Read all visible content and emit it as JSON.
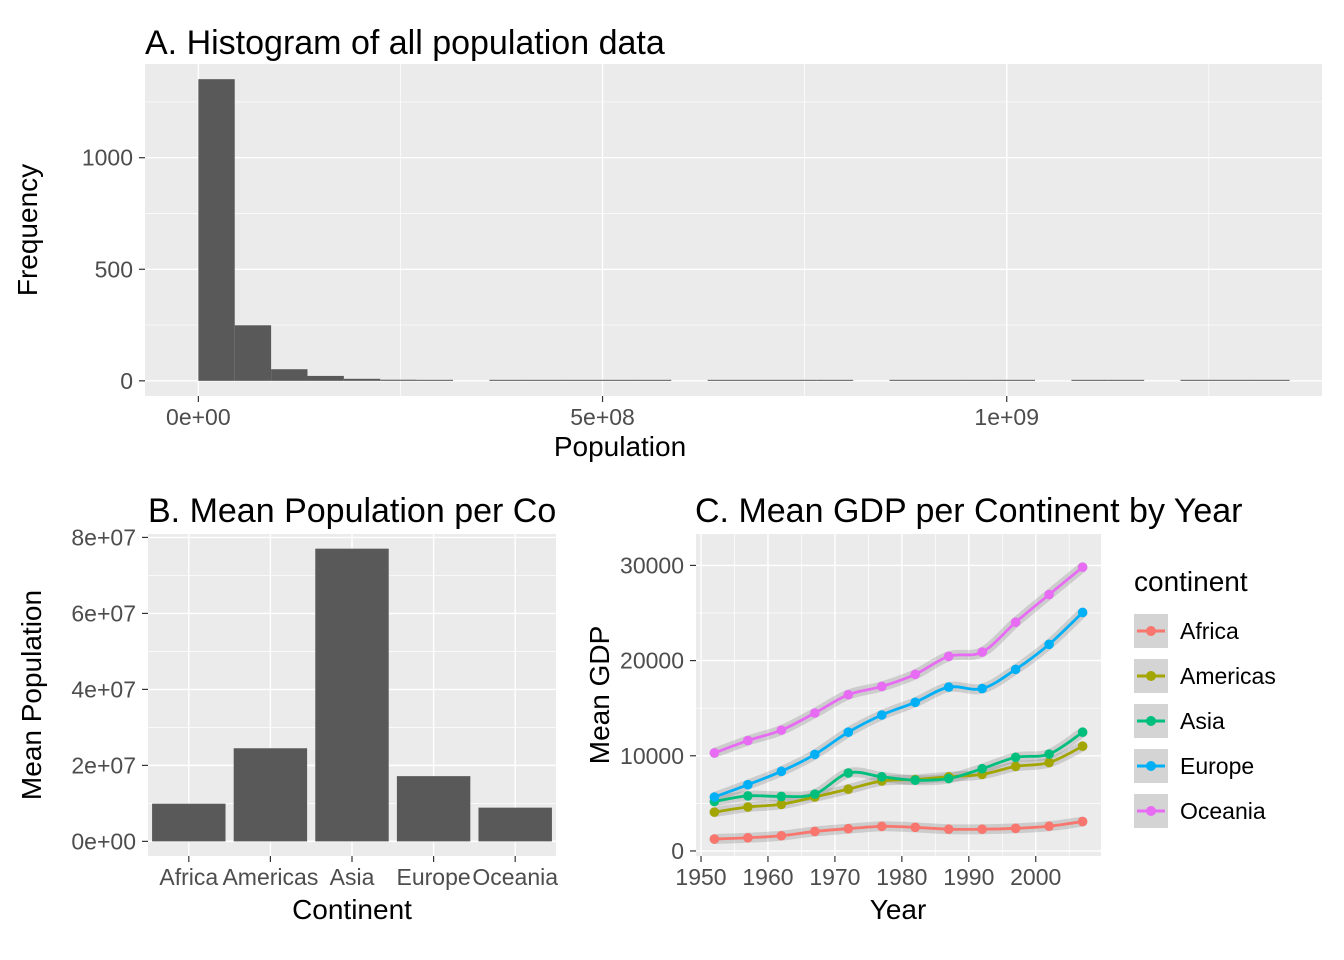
{
  "figure": {
    "background": "#ffffff",
    "panel_background": "#ebebeb",
    "grid_color": "#ffffff",
    "axis_text_color": "#4d4d4d",
    "tick_mark_color": "#333333",
    "title_color": "#000000",
    "legend_key_fill": "#d4d4d4",
    "ribbon_color": "rgba(125,125,125,0.28)"
  },
  "chart_data": [
    {
      "id": "A",
      "type": "histogram",
      "title": "A. Histogram of all population data",
      "xlabel": "Population",
      "ylabel": "Frequency",
      "bar_color": "#595959",
      "bin_start": 0,
      "bin_width": 45000000,
      "counts": [
        1352,
        249,
        52,
        22,
        9,
        5,
        3,
        0,
        1,
        1,
        1,
        1,
        2,
        0,
        3,
        1,
        1,
        1,
        0,
        2,
        1,
        1,
        2,
        0,
        2,
        1,
        0,
        1,
        1,
        1
      ],
      "xlim": [
        -66000000,
        1390000000
      ],
      "ylim": [
        -68,
        1420
      ],
      "xticks": [
        {
          "v": 0,
          "label": "0e+00"
        },
        {
          "v": 500000000,
          "label": "5e+08"
        },
        {
          "v": 1000000000,
          "label": "1e+09"
        }
      ],
      "yticks": [
        {
          "v": 0,
          "label": "0"
        },
        {
          "v": 500,
          "label": "500"
        },
        {
          "v": 1000,
          "label": "1000"
        }
      ],
      "grid": true
    },
    {
      "id": "B",
      "type": "bar",
      "title": "B. Mean Population per Co",
      "xlabel": "Continent",
      "ylabel": "Mean Population",
      "bar_color": "#595959",
      "categories": [
        "Africa",
        "Americas",
        "Asia",
        "Europe",
        "Oceania"
      ],
      "values": [
        9916003,
        24504795,
        77038722,
        17169765,
        8874672
      ],
      "ylim": [
        -3850000,
        80900000
      ],
      "yticks": [
        {
          "v": 0,
          "label": "0e+00"
        },
        {
          "v": 20000000,
          "label": "2e+07"
        },
        {
          "v": 40000000,
          "label": "4e+07"
        },
        {
          "v": 60000000,
          "label": "6e+07"
        },
        {
          "v": 80000000,
          "label": "8e+07"
        }
      ],
      "grid": true
    },
    {
      "id": "C",
      "type": "line",
      "title": "C. Mean GDP per Continent by Year",
      "xlabel": "Year",
      "ylabel": "Mean GDP",
      "legend_title": "continent",
      "legend_position": "right",
      "x": [
        1952,
        1957,
        1962,
        1967,
        1972,
        1977,
        1982,
        1987,
        1992,
        1997,
        2002,
        2007
      ],
      "series": [
        {
          "name": "Africa",
          "color": "#F8766D",
          "values": [
            1253,
            1385,
            1598,
            2050,
            2340,
            2586,
            2482,
            2283,
            2282,
            2379,
            2599,
            3089
          ]
        },
        {
          "name": "Americas",
          "color": "#A3A500",
          "values": [
            4079,
            4616,
            4902,
            5668,
            6491,
            7352,
            7507,
            7793,
            8045,
            8889,
            9287,
            11003
          ]
        },
        {
          "name": "Asia",
          "color": "#00BF7D",
          "values": [
            5195,
            5788,
            5729,
            5971,
            8187,
            7791,
            7434,
            7608,
            8640,
            9834,
            10174,
            12473
          ]
        },
        {
          "name": "Europe",
          "color": "#00B0F6",
          "values": [
            5661,
            6963,
            8365,
            10143,
            12479,
            14283,
            15617,
            17214,
            17061,
            19076,
            21711,
            25054
          ]
        },
        {
          "name": "Oceania",
          "color": "#E76BF3",
          "values": [
            10298,
            11599,
            12696,
            14495,
            16417,
            17283,
            18555,
            20448,
            20894,
            24024,
            26939,
            29810
          ]
        }
      ],
      "xlim": [
        1949.25,
        2009.75
      ],
      "ylim": [
        -530,
        33300
      ],
      "xticks": [
        {
          "v": 1950,
          "label": "1950"
        },
        {
          "v": 1960,
          "label": "1960"
        },
        {
          "v": 1970,
          "label": "1970"
        },
        {
          "v": 1980,
          "label": "1980"
        },
        {
          "v": 1990,
          "label": "1990"
        },
        {
          "v": 2000,
          "label": "2000"
        }
      ],
      "yticks": [
        {
          "v": 0,
          "label": "0"
        },
        {
          "v": 10000,
          "label": "10000"
        },
        {
          "v": 20000,
          "label": "20000"
        },
        {
          "v": 30000,
          "label": "30000"
        }
      ],
      "grid": true
    }
  ]
}
